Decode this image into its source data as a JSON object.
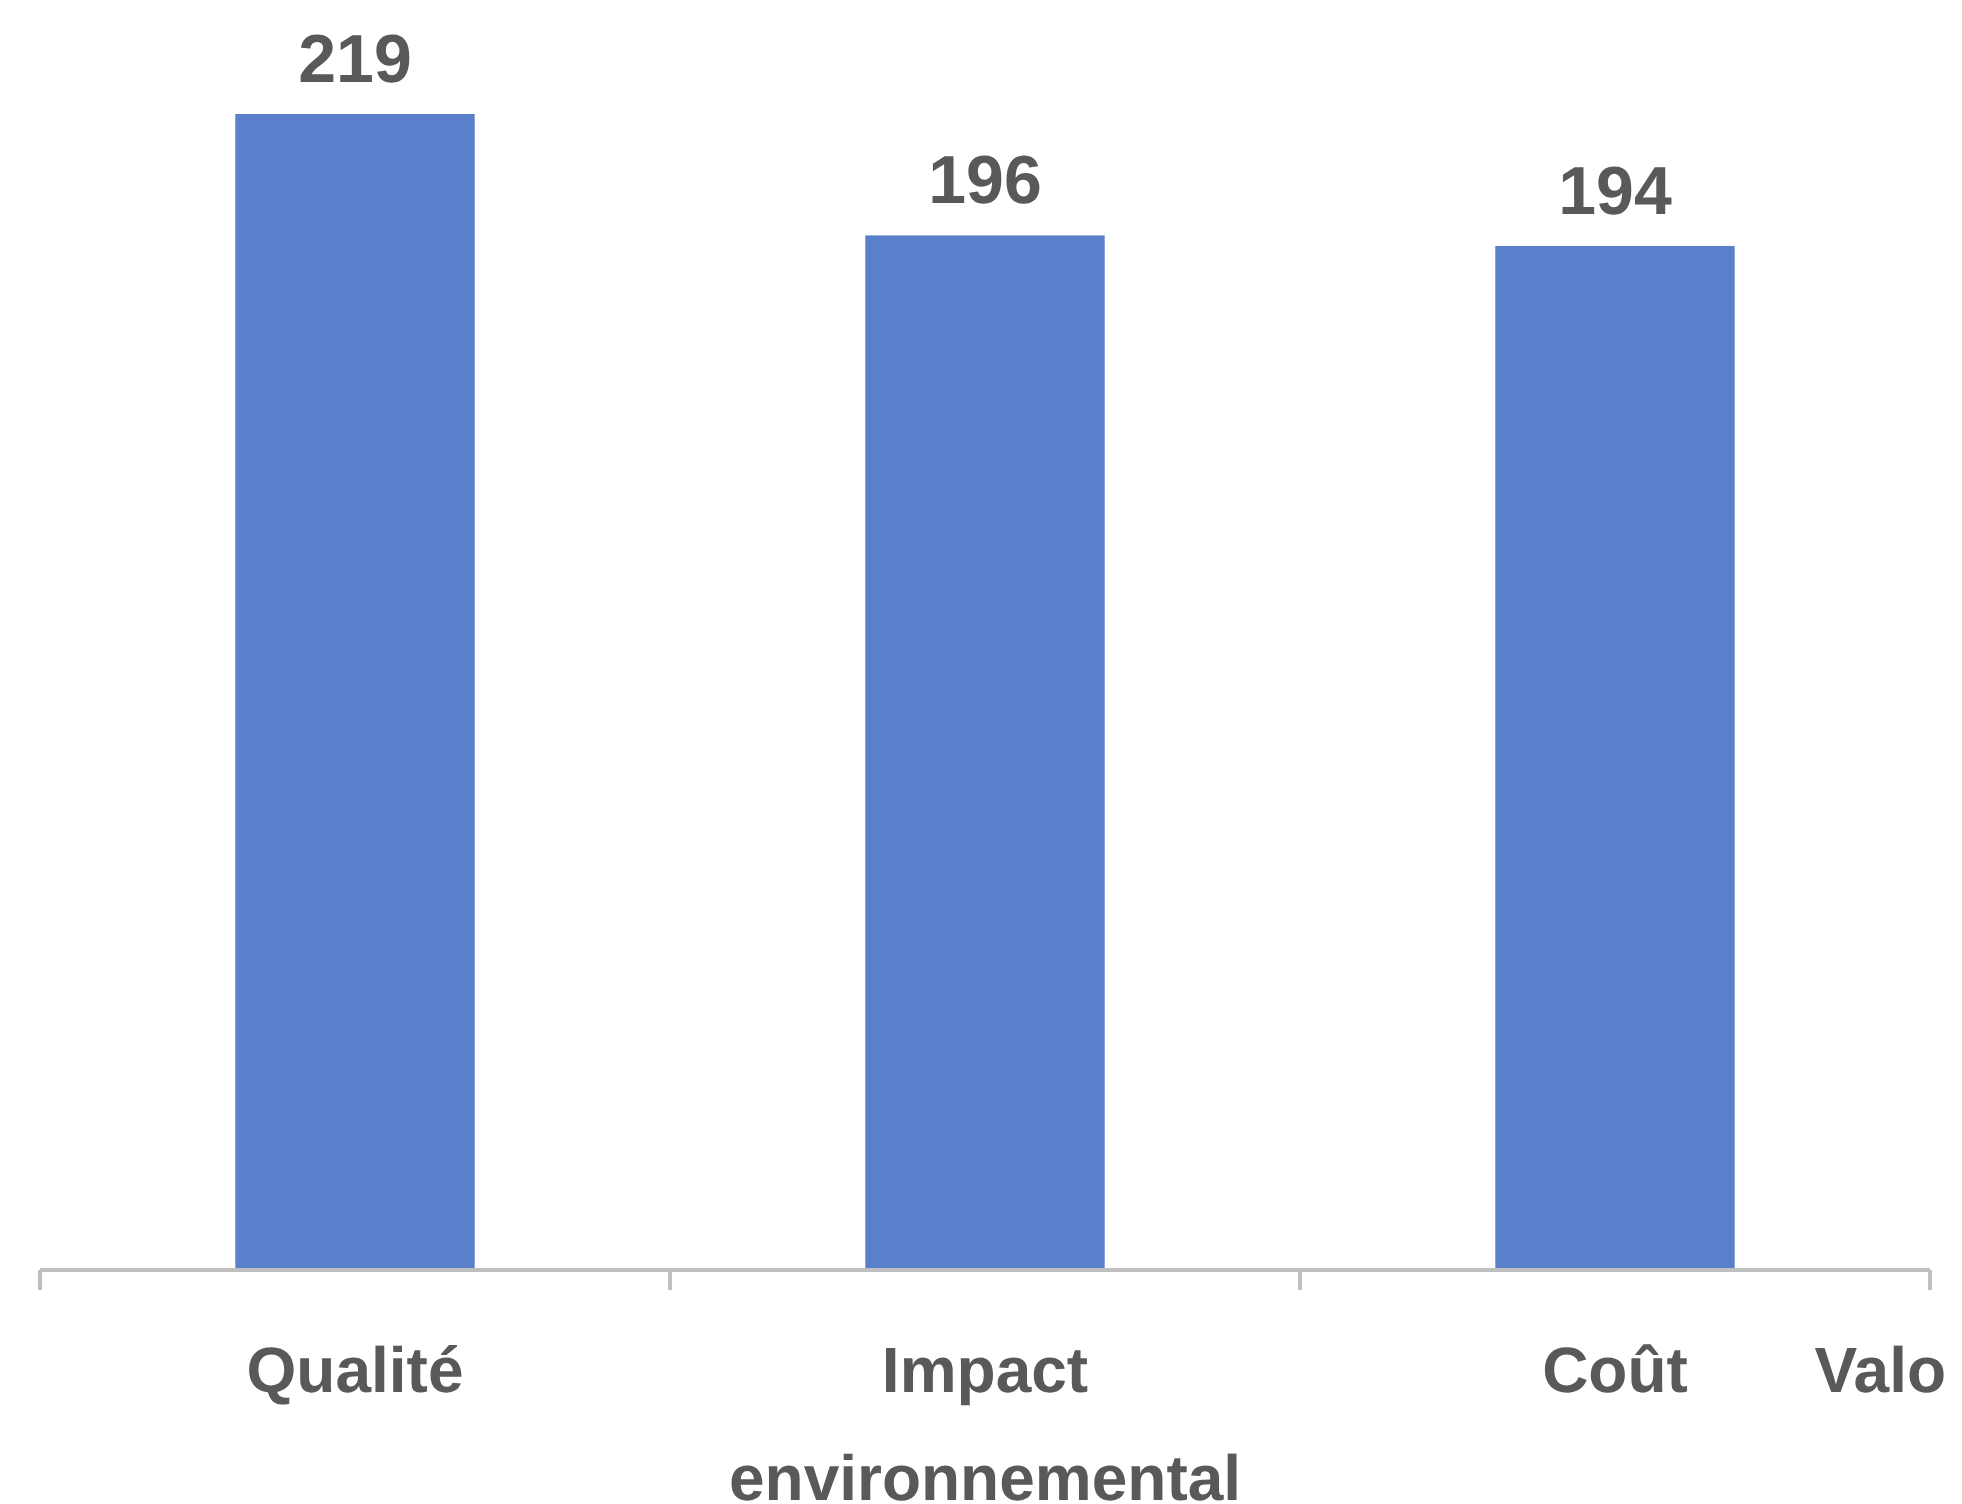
{
  "chart_data": {
    "type": "bar",
    "categories": [
      "Qualité",
      "Impact environnemental",
      "Coût"
    ],
    "values": [
      219,
      196,
      194
    ],
    "color": "#5a7fcb",
    "data_labels": true,
    "annotations": [
      "Valo"
    ]
  }
}
